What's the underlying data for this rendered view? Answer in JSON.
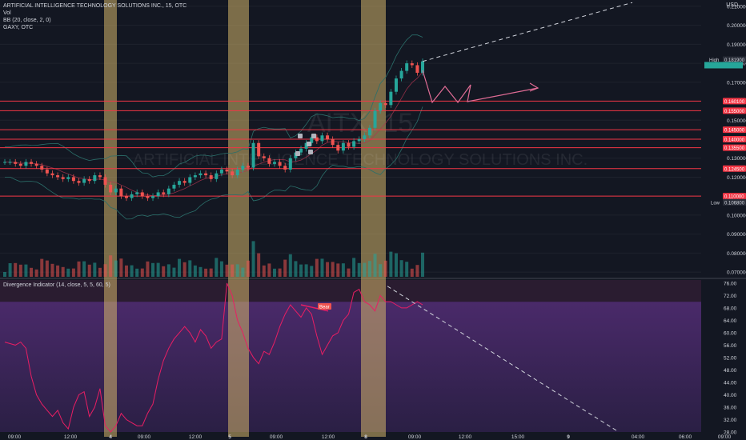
{
  "legend": {
    "title": "ARTIFICIAL INTELLIGENCE TECHNOLOGY SOLUTIONS INC., 15, OTC",
    "vol": "Vol",
    "bb": "BB (20, close, 2, 0)",
    "gaxy": "GAXY, OTC"
  },
  "watermark": {
    "symbol": "AITX, 15",
    "name": "ARTIFICIAL INTELLIGENCE TECHNOLOGY SOLUTIONS INC."
  },
  "currency": "USD",
  "oscillator_title": "Divergence Indicator (14, close, 5, 5, 60, 5)",
  "colors": {
    "up": "#26a69a",
    "down": "#ef5350",
    "level_line": "#f23645",
    "highlight": "#d4b46a",
    "osc_line": "#e91e63",
    "osc_band": "#7e57c2"
  },
  "chart_data": [
    {
      "type": "candlestick",
      "price_axis": [
        "0.210000",
        "0.200000",
        "0.190000",
        "0.180000",
        "0.170000",
        "0.160000",
        "0.150000",
        "0.140000",
        "0.130000",
        "0.120000",
        "0.110000",
        "0.100000",
        "0.090000",
        "0.080000",
        "0.070000"
      ],
      "ylim": [
        0.0675,
        0.2125
      ],
      "high_label": "High",
      "high_value": "0.181900",
      "low_label": "Low",
      "low_value": "0.106800",
      "levels": [
        "0.160100",
        "0.155000",
        "0.145000",
        "0.140000",
        "0.135500",
        "0.124500",
        "0.110000"
      ],
      "candles_close": [
        0.128,
        0.128,
        0.127,
        0.126,
        0.128,
        0.127,
        0.126,
        0.124,
        0.122,
        0.121,
        0.12,
        0.119,
        0.12,
        0.118,
        0.117,
        0.119,
        0.118,
        0.121,
        0.12,
        0.116,
        0.112,
        0.114,
        0.11,
        0.109,
        0.111,
        0.112,
        0.11,
        0.109,
        0.11,
        0.112,
        0.111,
        0.114,
        0.116,
        0.118,
        0.117,
        0.12,
        0.121,
        0.122,
        0.121,
        0.119,
        0.122,
        0.124,
        0.123,
        0.121,
        0.124,
        0.126,
        0.125,
        0.138,
        0.131,
        0.13,
        0.127,
        0.128,
        0.126,
        0.124,
        0.13,
        0.133,
        0.135,
        0.138,
        0.141,
        0.139,
        0.142,
        0.14,
        0.137,
        0.134,
        0.138,
        0.136,
        0.139,
        0.14,
        0.142,
        0.146,
        0.155,
        0.159,
        0.158,
        0.165,
        0.172,
        0.176,
        0.18,
        0.179,
        0.175,
        0.181
      ],
      "volume_max_label": "",
      "events": [
        "4",
        "5",
        "8"
      ],
      "time_axis": [
        "09:00",
        "12:00",
        "4",
        "09:00",
        "12:00",
        "5",
        "09:00",
        "12:00",
        "8",
        "09:00",
        "12:00",
        "15:00",
        "9",
        "04:00",
        "06:00",
        "09:00"
      ]
    },
    {
      "type": "line",
      "name": "Divergence Indicator",
      "y_axis": [
        "76.00",
        "72.00",
        "68.00",
        "64.00",
        "60.00",
        "56.00",
        "52.00",
        "48.00",
        "44.00",
        "40.00",
        "36.00",
        "32.00",
        "28.00"
      ],
      "ylim": [
        28,
        77
      ],
      "band": [
        30,
        70
      ],
      "divergence_label": "Bear",
      "values": [
        57,
        56.5,
        56,
        57,
        55,
        46,
        40,
        37,
        35,
        33,
        35,
        31,
        29,
        36,
        40,
        41,
        33,
        36,
        42,
        30,
        28,
        30,
        34,
        32,
        31,
        30,
        30,
        34,
        37,
        45,
        51,
        55,
        58,
        60,
        62,
        60,
        57,
        61,
        59,
        55,
        57,
        58,
        76,
        72,
        64,
        60,
        55,
        52,
        50,
        54,
        53,
        57,
        62,
        66,
        69,
        67,
        65,
        68,
        66,
        59,
        53,
        56,
        59,
        60,
        64,
        66,
        73,
        74,
        70,
        69,
        67,
        72,
        70,
        70,
        69,
        68,
        68,
        69,
        70,
        69
      ]
    }
  ]
}
